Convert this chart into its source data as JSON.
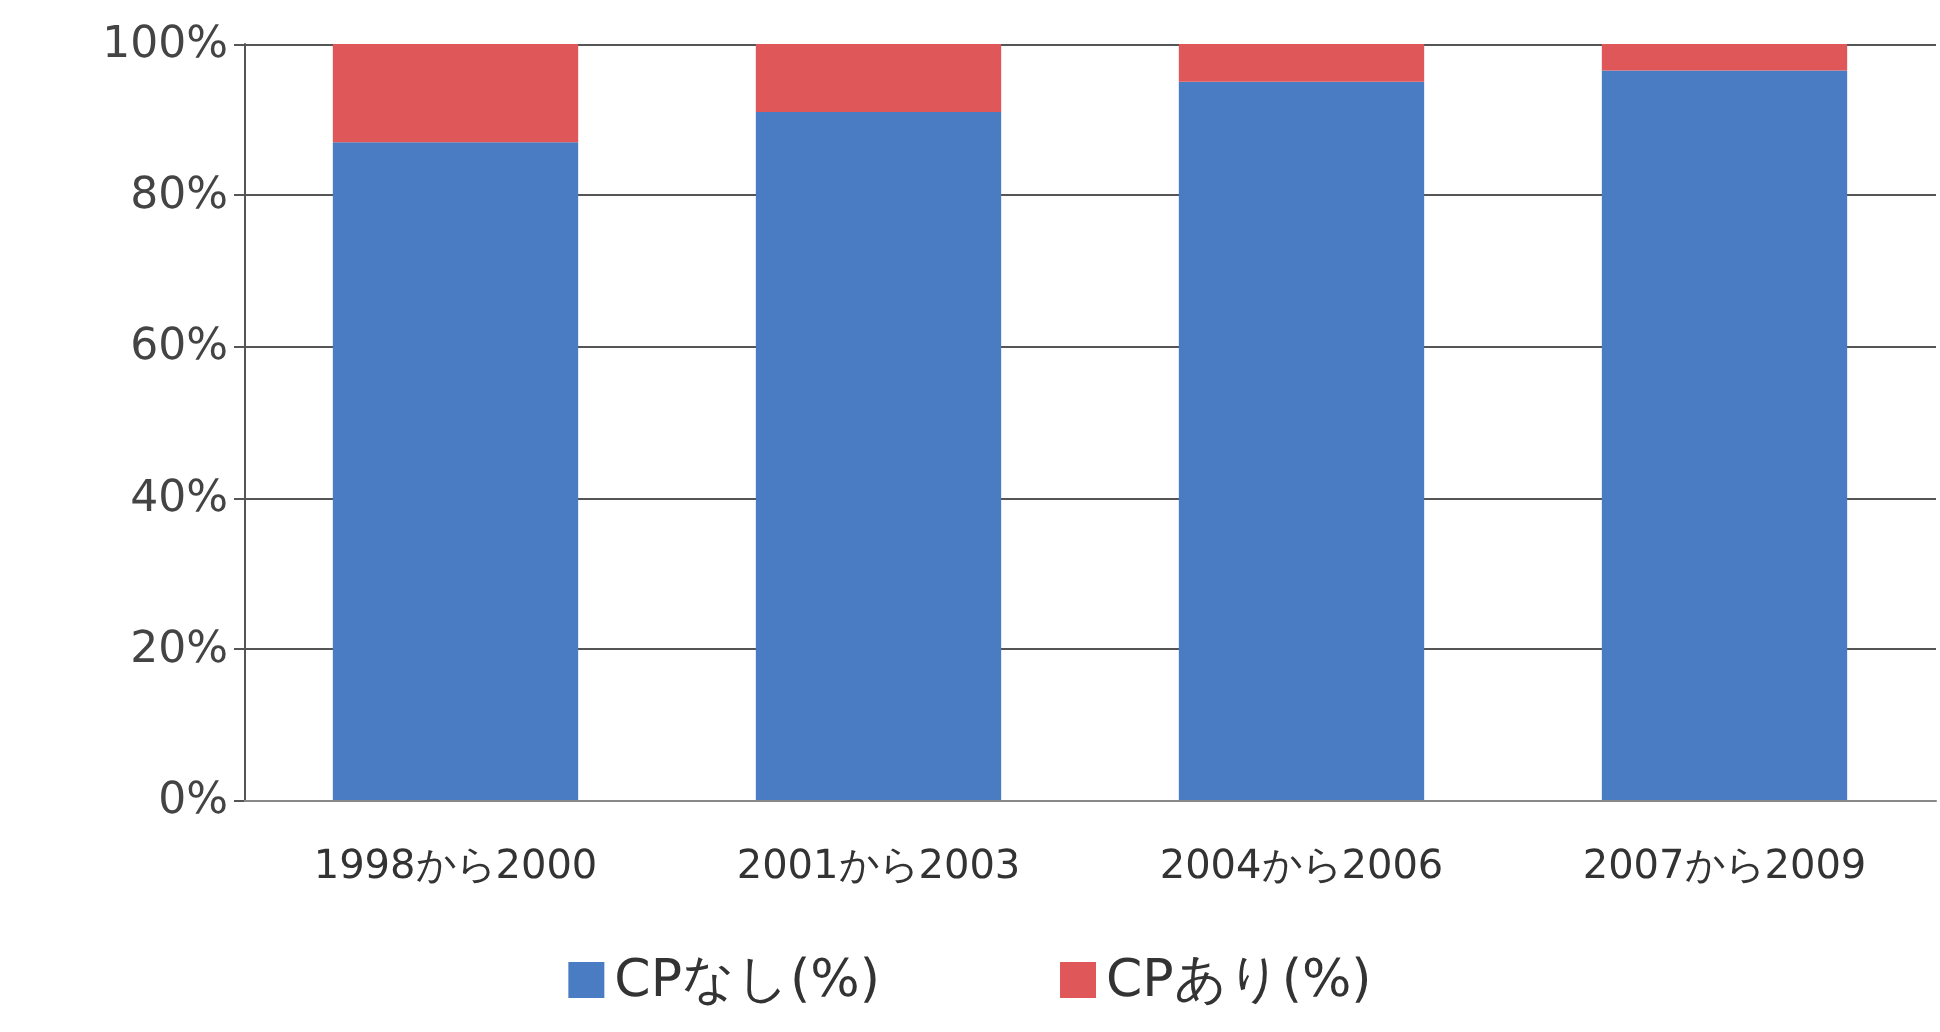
{
  "chart_data": {
    "type": "bar",
    "stacked": true,
    "categories": [
      "1998から2000",
      "2001から2003",
      "2004から2006",
      "2007から2009"
    ],
    "series": [
      {
        "name": "CPなし(%)",
        "color": "#4a7cc4",
        "values": [
          87,
          91,
          95,
          96.5
        ]
      },
      {
        "name": "CPあり(%)",
        "color": "#e0575a",
        "values": [
          13,
          9,
          5,
          3.5
        ]
      }
    ],
    "ylim": [
      0,
      100
    ],
    "yticks": [
      {
        "value": 0,
        "label": "0%"
      },
      {
        "value": 20,
        "label": "20%"
      },
      {
        "value": 40,
        "label": "40%"
      },
      {
        "value": 60,
        "label": "60%"
      },
      {
        "value": 80,
        "label": "80%"
      },
      {
        "value": 100,
        "label": "100%"
      }
    ],
    "grid": "y",
    "legend": "bottom"
  }
}
